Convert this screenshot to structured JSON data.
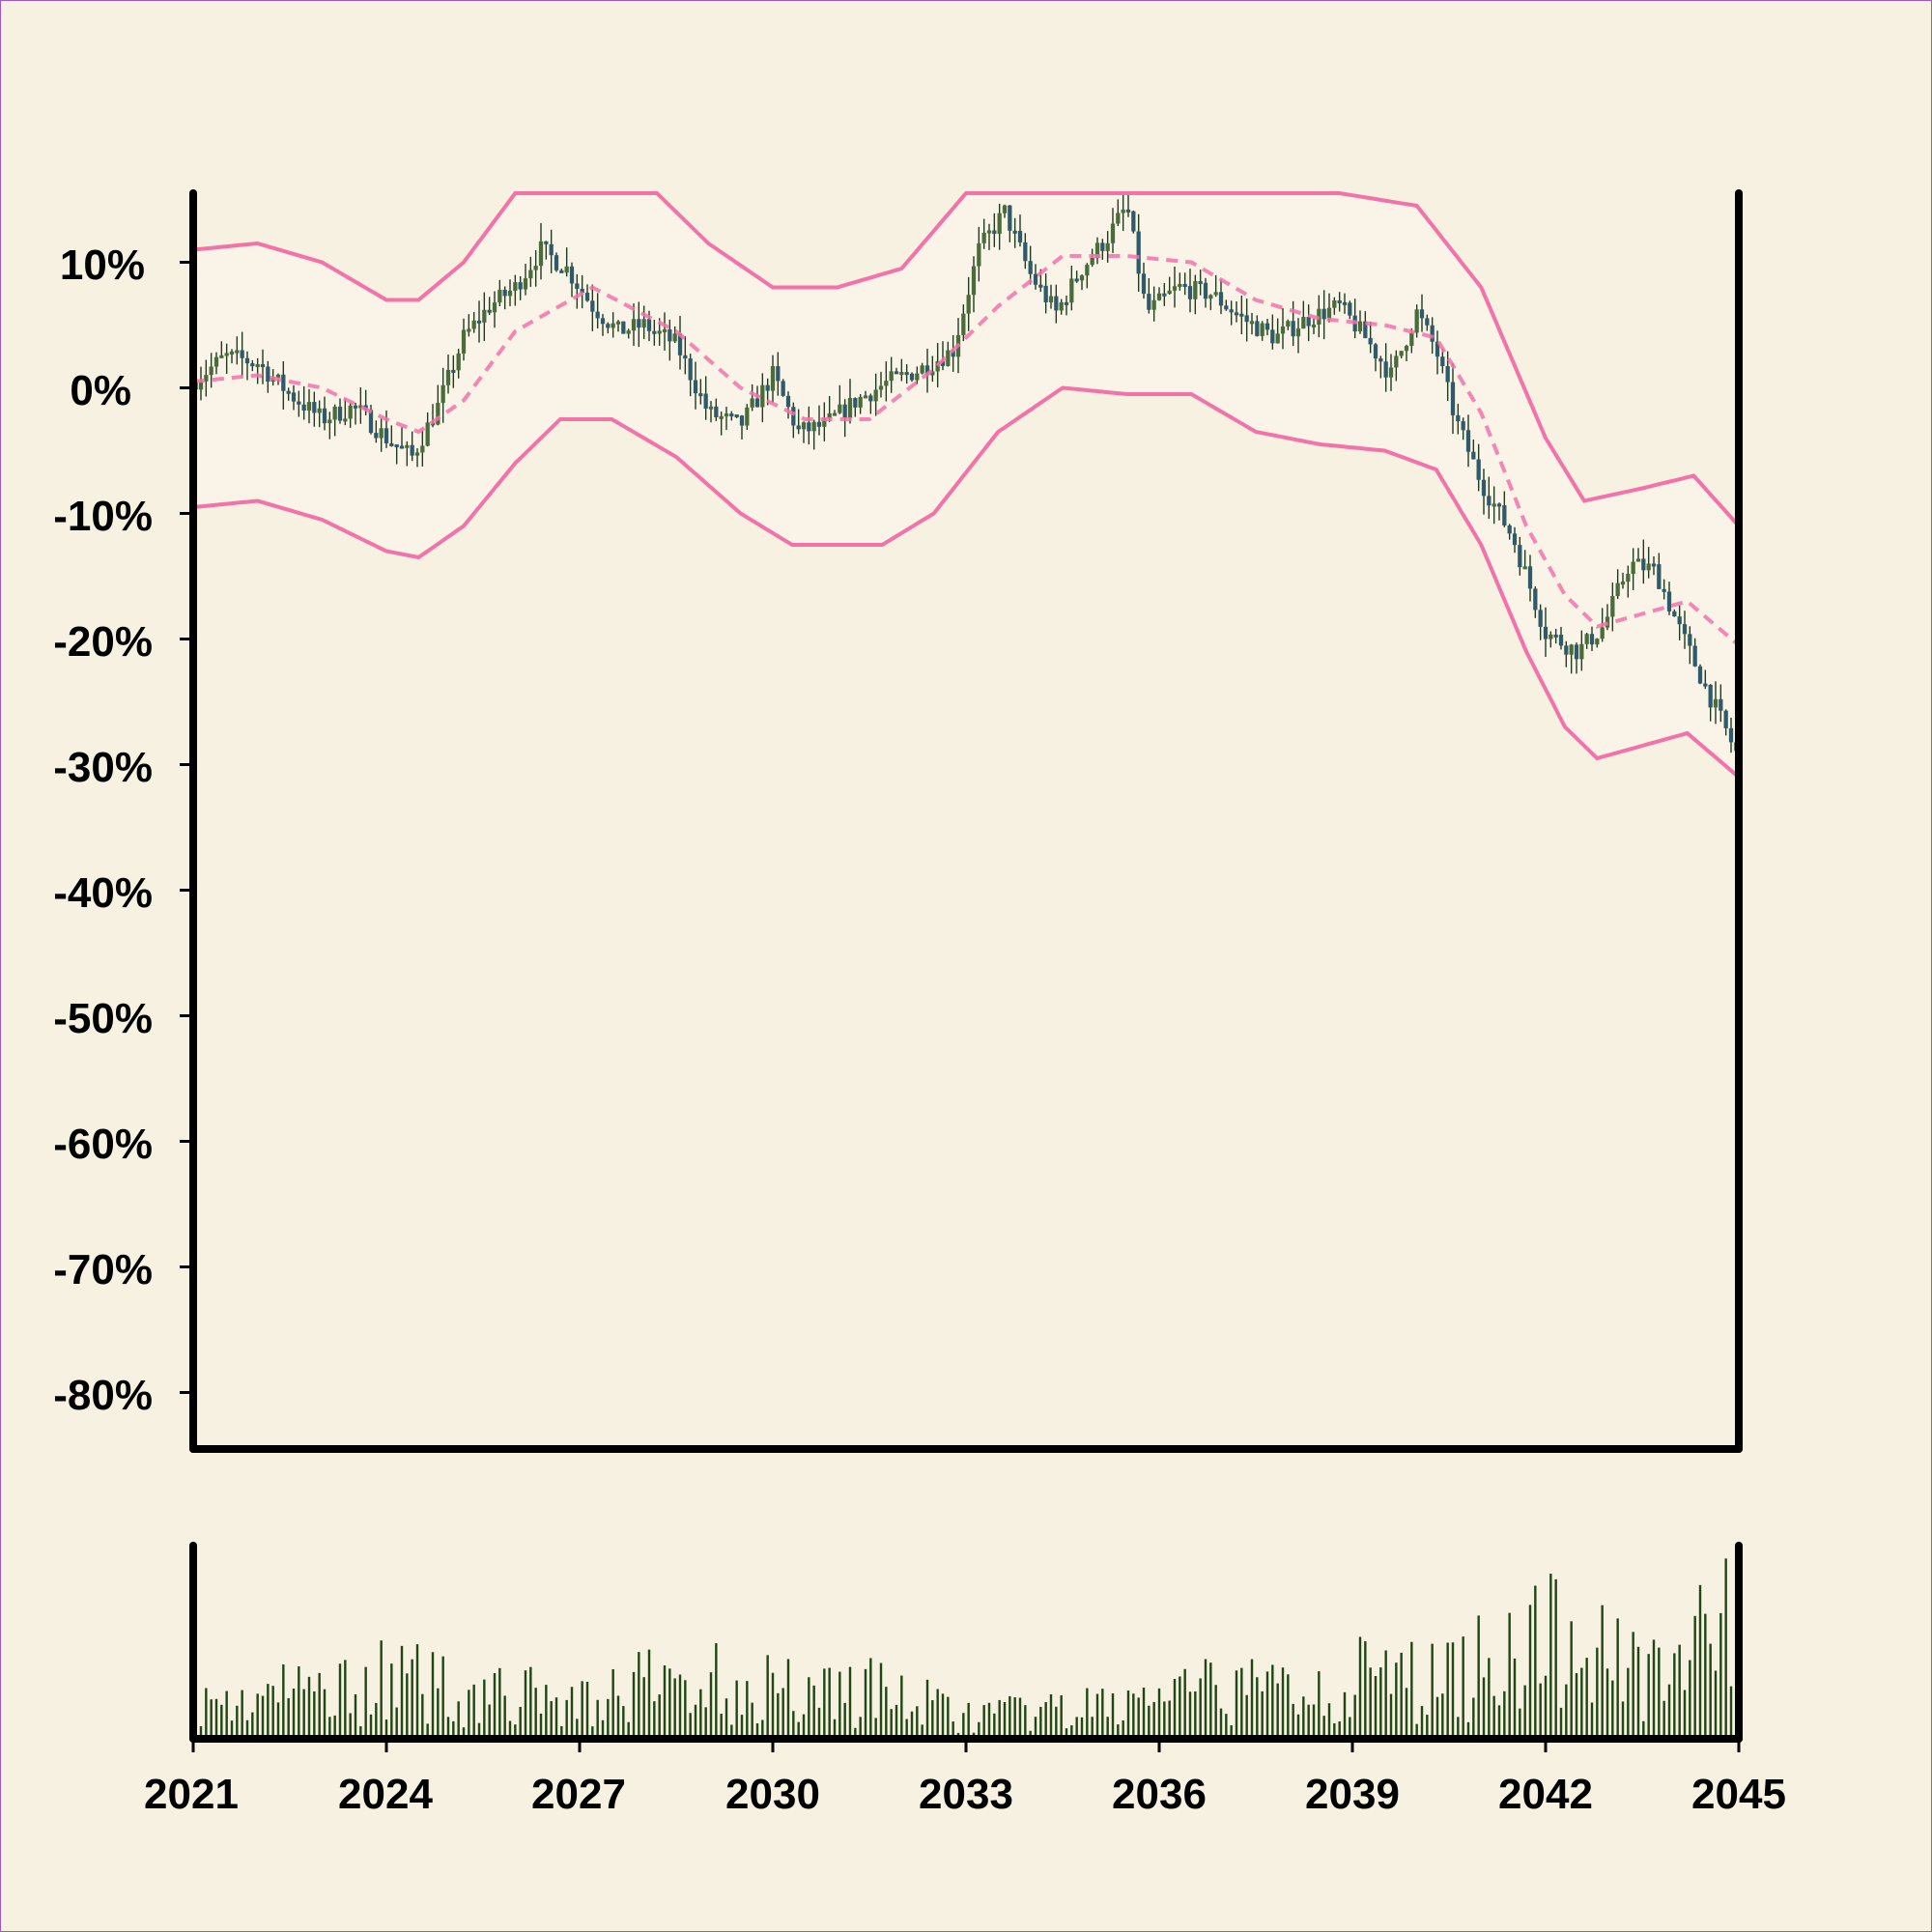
{
  "chart_data": {
    "type": "candlestick",
    "x_unit": "year",
    "y_unit": "percent",
    "x_ticks": [
      "2021",
      "2024",
      "2027",
      "2030",
      "2033",
      "2036",
      "2039",
      "2042",
      "2045"
    ],
    "y_ticks": [
      "10%",
      "0%",
      "-10%",
      "-20%",
      "-30%",
      "-40%",
      "-50%",
      "-60%",
      "-70%",
      "-80%"
    ],
    "xlim": [
      2021,
      2045
    ],
    "ylim": [
      -84.5,
      15.5
    ],
    "price_series": [
      {
        "year": 2021.0,
        "value": 0.5
      },
      {
        "year": 2021.5,
        "value": 2.5
      },
      {
        "year": 2022.0,
        "value": 2.0
      },
      {
        "year": 2022.5,
        "value": -0.5
      },
      {
        "year": 2023.0,
        "value": -2.5
      },
      {
        "year": 2023.5,
        "value": -1.5
      },
      {
        "year": 2024.0,
        "value": -4.0
      },
      {
        "year": 2024.4,
        "value": -5.5
      },
      {
        "year": 2024.8,
        "value": -1.5
      },
      {
        "year": 2025.2,
        "value": 4.0
      },
      {
        "year": 2025.6,
        "value": 6.5
      },
      {
        "year": 2026.0,
        "value": 8.0
      },
      {
        "year": 2026.4,
        "value": 11.0
      },
      {
        "year": 2026.8,
        "value": 9.5
      },
      {
        "year": 2027.2,
        "value": 6.5
      },
      {
        "year": 2027.6,
        "value": 4.5
      },
      {
        "year": 2028.0,
        "value": 5.0
      },
      {
        "year": 2028.5,
        "value": 3.5
      },
      {
        "year": 2029.0,
        "value": -2.0
      },
      {
        "year": 2029.5,
        "value": -3.0
      },
      {
        "year": 2030.0,
        "value": 1.0
      },
      {
        "year": 2030.4,
        "value": -3.5
      },
      {
        "year": 2030.8,
        "value": -3.0
      },
      {
        "year": 2031.3,
        "value": -1.0
      },
      {
        "year": 2031.8,
        "value": 0.5
      },
      {
        "year": 2032.3,
        "value": 1.5
      },
      {
        "year": 2032.8,
        "value": 3.0
      },
      {
        "year": 2033.2,
        "value": 11.0
      },
      {
        "year": 2033.6,
        "value": 14.0
      },
      {
        "year": 2034.0,
        "value": 9.0
      },
      {
        "year": 2034.4,
        "value": 6.0
      },
      {
        "year": 2034.8,
        "value": 9.5
      },
      {
        "year": 2035.2,
        "value": 12.0
      },
      {
        "year": 2035.5,
        "value": 14.5
      },
      {
        "year": 2035.8,
        "value": 6.0
      },
      {
        "year": 2036.3,
        "value": 8.0
      },
      {
        "year": 2036.8,
        "value": 7.5
      },
      {
        "year": 2037.3,
        "value": 5.5
      },
      {
        "year": 2037.8,
        "value": 4.0
      },
      {
        "year": 2038.3,
        "value": 5.5
      },
      {
        "year": 2038.8,
        "value": 6.5
      },
      {
        "year": 2039.2,
        "value": 4.0
      },
      {
        "year": 2039.6,
        "value": 1.0
      },
      {
        "year": 2040.0,
        "value": 6.0
      },
      {
        "year": 2040.3,
        "value": 3.0
      },
      {
        "year": 2040.6,
        "value": -2.5
      },
      {
        "year": 2041.0,
        "value": -7.5
      },
      {
        "year": 2041.5,
        "value": -12.0
      },
      {
        "year": 2042.0,
        "value": -19.5
      },
      {
        "year": 2042.5,
        "value": -21.0
      },
      {
        "year": 2042.9,
        "value": -19.0
      },
      {
        "year": 2043.3,
        "value": -14.0
      },
      {
        "year": 2043.7,
        "value": -14.5
      },
      {
        "year": 2044.1,
        "value": -19.5
      },
      {
        "year": 2044.5,
        "value": -24.0
      },
      {
        "year": 2045.0,
        "value": -29.5
      }
    ],
    "upper_band": [
      {
        "year": 2021.0,
        "value": 11.0
      },
      {
        "year": 2022.0,
        "value": 11.5
      },
      {
        "year": 2023.0,
        "value": 10.0
      },
      {
        "year": 2024.0,
        "value": 7.0
      },
      {
        "year": 2024.5,
        "value": 7.0
      },
      {
        "year": 2025.2,
        "value": 10.0
      },
      {
        "year": 2026.0,
        "value": 15.5
      },
      {
        "year": 2028.2,
        "value": 15.5
      },
      {
        "year": 2029.0,
        "value": 11.5
      },
      {
        "year": 2030.0,
        "value": 8.0
      },
      {
        "year": 2031.0,
        "value": 8.0
      },
      {
        "year": 2032.0,
        "value": 9.5
      },
      {
        "year": 2033.0,
        "value": 15.5
      },
      {
        "year": 2038.8,
        "value": 15.5
      },
      {
        "year": 2040.0,
        "value": 14.5
      },
      {
        "year": 2041.0,
        "value": 8.0
      },
      {
        "year": 2042.0,
        "value": -4.0
      },
      {
        "year": 2042.6,
        "value": -9.0
      },
      {
        "year": 2043.5,
        "value": -8.0
      },
      {
        "year": 2044.3,
        "value": -7.0
      },
      {
        "year": 2045.0,
        "value": -11.0
      }
    ],
    "middle_band": [
      {
        "year": 2021.0,
        "value": 0.5
      },
      {
        "year": 2022.0,
        "value": 1.0
      },
      {
        "year": 2023.0,
        "value": 0.0
      },
      {
        "year": 2024.0,
        "value": -2.5
      },
      {
        "year": 2024.5,
        "value": -3.5
      },
      {
        "year": 2025.2,
        "value": -1.0
      },
      {
        "year": 2026.0,
        "value": 4.5
      },
      {
        "year": 2027.2,
        "value": 8.0
      },
      {
        "year": 2028.5,
        "value": 4.5
      },
      {
        "year": 2029.5,
        "value": 0.0
      },
      {
        "year": 2030.5,
        "value": -2.5
      },
      {
        "year": 2031.5,
        "value": -2.5
      },
      {
        "year": 2032.5,
        "value": 1.5
      },
      {
        "year": 2033.5,
        "value": 6.5
      },
      {
        "year": 2034.5,
        "value": 10.5
      },
      {
        "year": 2035.5,
        "value": 10.5
      },
      {
        "year": 2036.5,
        "value": 10.0
      },
      {
        "year": 2037.5,
        "value": 7.0
      },
      {
        "year": 2038.5,
        "value": 5.5
      },
      {
        "year": 2039.5,
        "value": 5.0
      },
      {
        "year": 2040.3,
        "value": 4.0
      },
      {
        "year": 2041.0,
        "value": -2.0
      },
      {
        "year": 2041.7,
        "value": -11.0
      },
      {
        "year": 2042.3,
        "value": -16.5
      },
      {
        "year": 2042.8,
        "value": -19.0
      },
      {
        "year": 2043.5,
        "value": -18.0
      },
      {
        "year": 2044.2,
        "value": -17.0
      },
      {
        "year": 2045.0,
        "value": -20.5
      }
    ],
    "lower_band": [
      {
        "year": 2021.0,
        "value": -9.5
      },
      {
        "year": 2022.0,
        "value": -9.0
      },
      {
        "year": 2023.0,
        "value": -10.5
      },
      {
        "year": 2024.0,
        "value": -13.0
      },
      {
        "year": 2024.5,
        "value": -13.5
      },
      {
        "year": 2025.2,
        "value": -11.0
      },
      {
        "year": 2026.0,
        "value": -6.0
      },
      {
        "year": 2026.7,
        "value": -2.5
      },
      {
        "year": 2027.5,
        "value": -2.5
      },
      {
        "year": 2028.5,
        "value": -5.5
      },
      {
        "year": 2029.5,
        "value": -10.0
      },
      {
        "year": 2030.3,
        "value": -12.5
      },
      {
        "year": 2031.0,
        "value": -12.5
      },
      {
        "year": 2031.7,
        "value": -12.5
      },
      {
        "year": 2032.5,
        "value": -10.0
      },
      {
        "year": 2033.5,
        "value": -3.5
      },
      {
        "year": 2034.5,
        "value": 0.0
      },
      {
        "year": 2035.5,
        "value": -0.5
      },
      {
        "year": 2036.5,
        "value": -0.5
      },
      {
        "year": 2037.5,
        "value": -3.5
      },
      {
        "year": 2038.5,
        "value": -4.5
      },
      {
        "year": 2039.5,
        "value": -5.0
      },
      {
        "year": 2040.3,
        "value": -6.5
      },
      {
        "year": 2041.0,
        "value": -12.5
      },
      {
        "year": 2041.7,
        "value": -21.0
      },
      {
        "year": 2042.3,
        "value": -27.0
      },
      {
        "year": 2042.8,
        "value": -29.5
      },
      {
        "year": 2043.5,
        "value": -28.5
      },
      {
        "year": 2044.2,
        "value": -27.5
      },
      {
        "year": 2045.0,
        "value": -31.0
      }
    ],
    "volume_profile": [
      {
        "year": 2021.0,
        "value": 25
      },
      {
        "year": 2022.5,
        "value": 35
      },
      {
        "year": 2024.0,
        "value": 45
      },
      {
        "year": 2025.5,
        "value": 35
      },
      {
        "year": 2027.0,
        "value": 28
      },
      {
        "year": 2028.5,
        "value": 45
      },
      {
        "year": 2030.0,
        "value": 40
      },
      {
        "year": 2031.5,
        "value": 38
      },
      {
        "year": 2033.0,
        "value": 18
      },
      {
        "year": 2034.5,
        "value": 20
      },
      {
        "year": 2036.0,
        "value": 32
      },
      {
        "year": 2037.5,
        "value": 38
      },
      {
        "year": 2039.0,
        "value": 45
      },
      {
        "year": 2040.5,
        "value": 45
      },
      {
        "year": 2041.5,
        "value": 75
      },
      {
        "year": 2042.5,
        "value": 70
      },
      {
        "year": 2043.5,
        "value": 62
      },
      {
        "year": 2044.5,
        "value": 70
      },
      {
        "year": 2045.0,
        "value": 90
      }
    ],
    "grid": false,
    "legend": "none",
    "colors": {
      "background": "#f7f1e1",
      "plot_background": "#f8f4e8",
      "band": "#f472aa",
      "candle_up": "#4a6b3a",
      "candle_down": "#2e5a6a",
      "wick": "#1e3b1e",
      "volume": "#1f4614",
      "axis": "#000000"
    }
  }
}
